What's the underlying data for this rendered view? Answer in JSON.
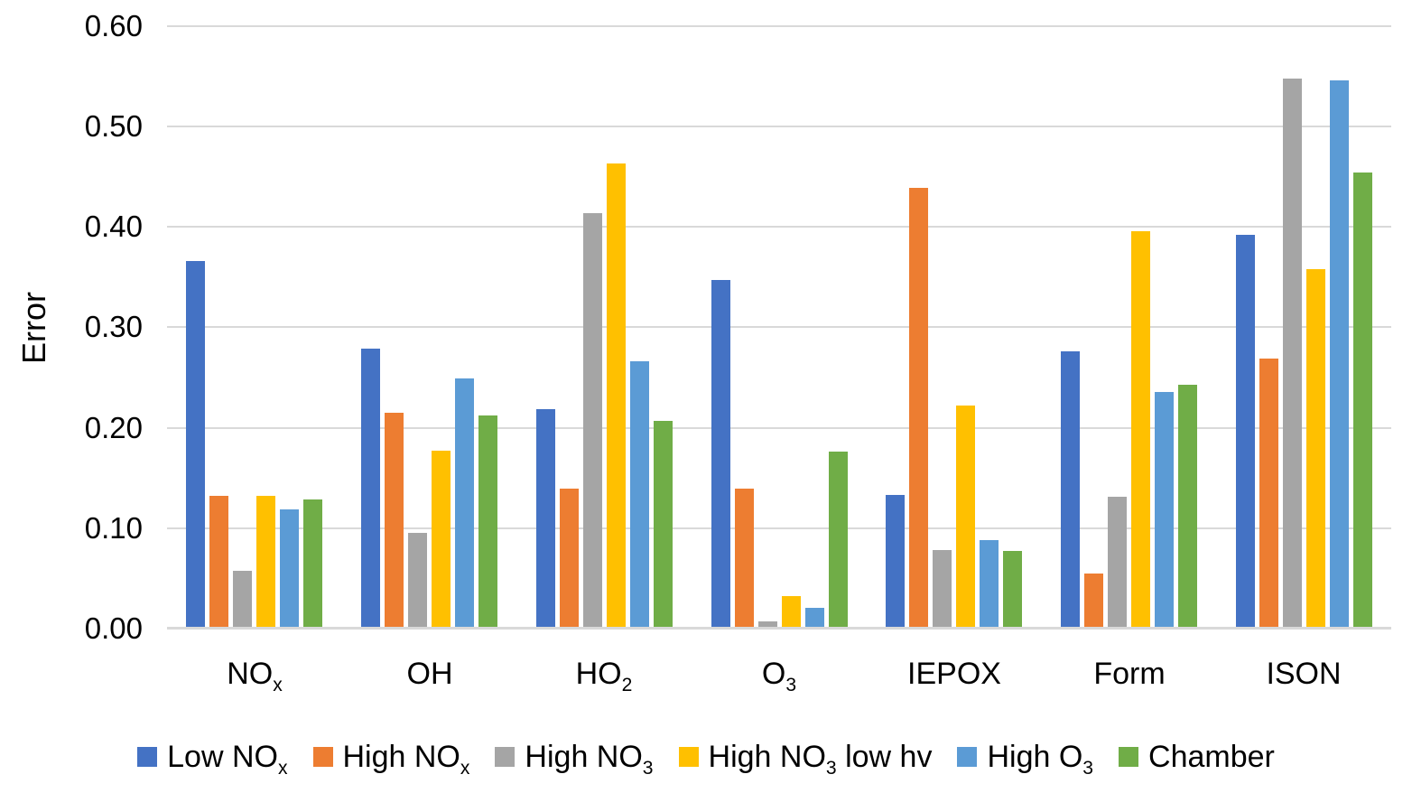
{
  "chart_data": {
    "type": "bar",
    "title": "",
    "xlabel": "",
    "ylabel": "Error",
    "ylim": [
      0.0,
      0.6
    ],
    "ytick_step": 0.1,
    "yticks": [
      "0.00",
      "0.10",
      "0.20",
      "0.30",
      "0.40",
      "0.50",
      "0.60"
    ],
    "grid": true,
    "gridline_color": "#d9d9d9",
    "background_color": "#ffffff",
    "legend_position": "bottom",
    "categories": [
      {
        "plain": "NOx",
        "pre": "NO",
        "sub": "x",
        "post": ""
      },
      {
        "plain": "OH",
        "pre": "OH",
        "sub": "",
        "post": ""
      },
      {
        "plain": "HO2",
        "pre": "HO",
        "sub": "2",
        "post": ""
      },
      {
        "plain": "O3",
        "pre": "O",
        "sub": "3",
        "post": ""
      },
      {
        "plain": "IEPOX",
        "pre": "IEPOX",
        "sub": "",
        "post": ""
      },
      {
        "plain": "Form",
        "pre": "Form",
        "sub": "",
        "post": ""
      },
      {
        "plain": "ISON",
        "pre": "ISON",
        "sub": "",
        "post": ""
      }
    ],
    "series": [
      {
        "plain": "Low NOx",
        "pre": "Low NO",
        "sub": "x",
        "post": "",
        "color": "#4472C4",
        "values": [
          0.366,
          0.279,
          0.219,
          0.347,
          0.133,
          0.276,
          0.392
        ]
      },
      {
        "plain": "High NOx",
        "pre": "High NO",
        "sub": "x",
        "post": "",
        "color": "#ED7D31",
        "values": [
          0.132,
          0.215,
          0.139,
          0.139,
          0.439,
          0.055,
          0.269
        ]
      },
      {
        "plain": "High NO3",
        "pre": "High NO",
        "sub": "3",
        "post": "",
        "color": "#A5A5A5",
        "values": [
          0.058,
          0.095,
          0.414,
          0.007,
          0.078,
          0.131,
          0.548
        ]
      },
      {
        "plain": "High NO3 low hv",
        "pre": "High NO",
        "sub": "3",
        "post": " low hv",
        "color": "#FFC000",
        "values": [
          0.132,
          0.177,
          0.463,
          0.032,
          0.222,
          0.396,
          0.358
        ]
      },
      {
        "plain": "High O3",
        "pre": "High O",
        "sub": "3",
        "post": "",
        "color": "#5B9BD5",
        "values": [
          0.119,
          0.249,
          0.266,
          0.021,
          0.088,
          0.236,
          0.546
        ]
      },
      {
        "plain": "Chamber",
        "pre": "Chamber",
        "sub": "",
        "post": "",
        "color": "#70AD47",
        "values": [
          0.129,
          0.212,
          0.207,
          0.176,
          0.077,
          0.243,
          0.454
        ]
      }
    ]
  }
}
